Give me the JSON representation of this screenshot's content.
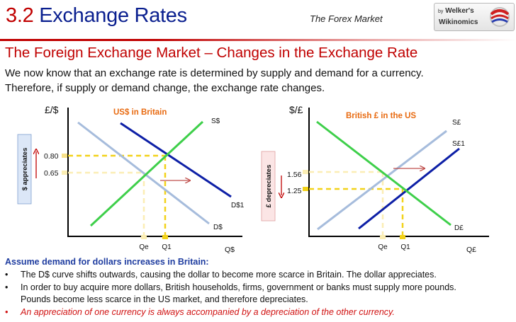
{
  "header": {
    "title_num": "3.2",
    "title_word1": "Exchange",
    "title_word2": "Rates",
    "subtitle": "The Forex Market",
    "logo_line1_prefix": "by",
    "logo_line1": "Welker's",
    "logo_line2": "Wikinomics"
  },
  "heading": "The Foreign Exchange Market – Changes in the Exchange Rate",
  "intro": [
    "We now know that an exchange rate is determined by supply and demand for a currency.",
    "Therefore, if supply or demand change, the exchange rate changes."
  ],
  "chart_data": [
    {
      "type": "line",
      "title": "US$ in Britain",
      "ylabel": "£/$",
      "xlabel": "Q$",
      "side_label": "$ appreciates",
      "y_ticks": [
        "0.80",
        "0.65"
      ],
      "x_ticks": [
        "Qe",
        "Q1"
      ],
      "series": [
        {
          "name": "S$",
          "points": [
            [
              0.48,
              0.29
            ],
            [
              2.95,
              2.31
            ]
          ]
        },
        {
          "name": "D$",
          "points": [
            [
              0.18,
              2.12
            ],
            [
              2.95,
              0.02
            ]
          ]
        },
        {
          "name": "D$1",
          "points": [
            [
              0.94,
              2.06
            ],
            [
              3.32,
              0.48
            ]
          ]
        }
      ],
      "equilibria": [
        {
          "label": "Qe",
          "price": 0.65,
          "quantity": 1.37
        },
        {
          "label": "Q1",
          "price": 0.8,
          "quantity": 1.7
        }
      ],
      "colors": {
        "supply": "#3ecf4a",
        "demand": "#a6bcdc",
        "demand_shift": "#0d1fa6",
        "guide": "#f2d21a"
      }
    },
    {
      "type": "line",
      "title": "British £ in the US",
      "ylabel": "$/£",
      "xlabel": "Q£",
      "side_label": "£ depreciates",
      "y_ticks": [
        "1.56",
        "1.25"
      ],
      "x_ticks": [
        "Qe",
        "Q1"
      ],
      "series": [
        {
          "name": "S£",
          "points": [
            [
              0.48,
              0.09
            ],
            [
              2.95,
              2.1
            ]
          ]
        },
        {
          "name": "S£1",
          "points": [
            [
              0.82,
              0.03
            ],
            [
              3.23,
              1.95
            ]
          ]
        },
        {
          "name": "D£",
          "points": [
            [
              0.1,
              2.13
            ],
            [
              3.27,
              0.13
            ]
          ]
        }
      ],
      "equilibria": [
        {
          "label": "Qe",
          "price": 1.56,
          "quantity": 1.48
        },
        {
          "label": "Q1",
          "price": 1.25,
          "quantity": 1.82
        }
      ],
      "colors": {
        "supply": "#a6bcdc",
        "supply_shift": "#0d1fa6",
        "demand": "#3ecf4a",
        "guide": "#f2d21a"
      }
    }
  ],
  "notes": {
    "lead": "Assume demand for dollars increases in Britain:",
    "items": [
      {
        "bullet": "•",
        "text": "The D$ curve shifts outwards, causing the dollar to become more scarce in Britain. The dollar appreciates."
      },
      {
        "bullet": "•",
        "text": "In order to buy acquire more dollars, British households, firms, government or banks must supply more pounds."
      },
      {
        "bullet": "",
        "text": "Pounds become less scarce in the US market, and therefore depreciates."
      },
      {
        "bullet": "•",
        "text": "An appreciation of one currency is always accompanied by a depreciation of the other currency."
      }
    ]
  }
}
